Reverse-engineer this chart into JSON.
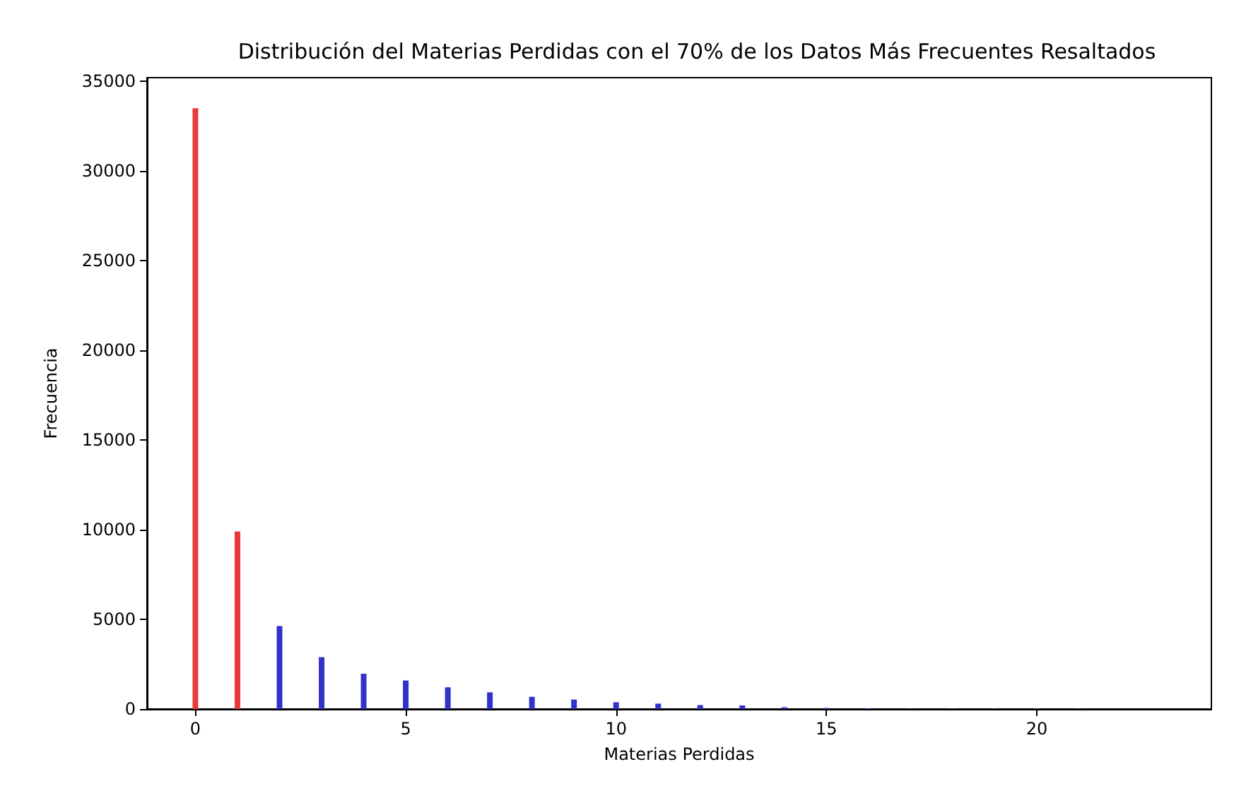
{
  "chart_data": {
    "type": "bar",
    "title": "Distribución del Materias Perdidas con el 70% de los Datos Más Frecuentes Resaltados",
    "xlabel": "Materias Perdidas",
    "ylabel": "Frecuencia",
    "x": [
      0,
      1,
      2,
      3,
      4,
      5,
      6,
      7,
      8,
      9,
      10,
      11,
      12,
      13,
      14,
      15,
      16,
      17,
      18,
      19,
      20,
      21
    ],
    "values": [
      33500,
      9900,
      4630,
      2890,
      1970,
      1590,
      1210,
      930,
      680,
      530,
      380,
      300,
      220,
      200,
      100,
      60,
      30,
      20,
      20,
      20,
      20,
      20
    ],
    "colors": [
      "#e83a3a",
      "#e83a3a",
      "#3232c8",
      "#3232c8",
      "#3232c8",
      "#3232c8",
      "#3232c8",
      "#3232c8",
      "#3232c8",
      "#3232c8",
      "#3232c8",
      "#3232c8",
      "#3232c8",
      "#3232c8",
      "#3232c8",
      "#3232c8",
      "#3232c8",
      "#3232c8",
      "#3232c8",
      "#3232c8",
      "#3232c8",
      "#3232c8"
    ],
    "xlim": [
      -1.15,
      24.15
    ],
    "xticks": [
      0,
      5,
      10,
      15,
      20
    ],
    "ylim": [
      0,
      35200
    ],
    "yticks": [
      0,
      5000,
      10000,
      15000,
      20000,
      25000,
      30000,
      35000
    ],
    "grid": false
  }
}
